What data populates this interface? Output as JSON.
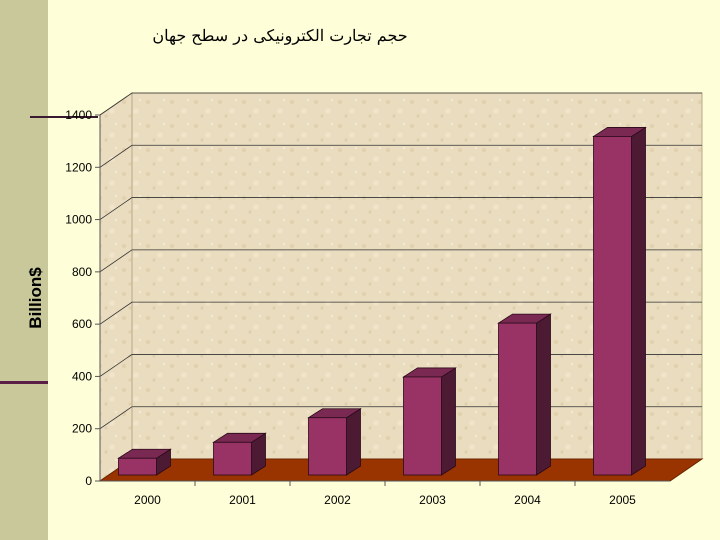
{
  "slide": {
    "title": "حجم تجارت الکترونیکی در سطح جهان",
    "colors": {
      "background": "#fefed8",
      "side_strip": "#c8c89a",
      "bar_front": "#993366",
      "bar_side": "#4d1a33",
      "bar_top": "#7a2a52",
      "floor": "#993300",
      "walls": "#e8d8b8"
    }
  },
  "chart_data": {
    "type": "bar",
    "style": "3d-column",
    "title": "",
    "xlabel": "",
    "ylabel": "Billion$",
    "categories": [
      "2000",
      "2001",
      "2002",
      "2003",
      "2004",
      "2005"
    ],
    "values": [
      87,
      148,
      242,
      398,
      604,
      1318
    ],
    "ylim": [
      0,
      1400
    ],
    "yticks": [
      0,
      200,
      400,
      600,
      800,
      1000,
      1200,
      1400
    ],
    "grid": true,
    "legend": "none"
  }
}
